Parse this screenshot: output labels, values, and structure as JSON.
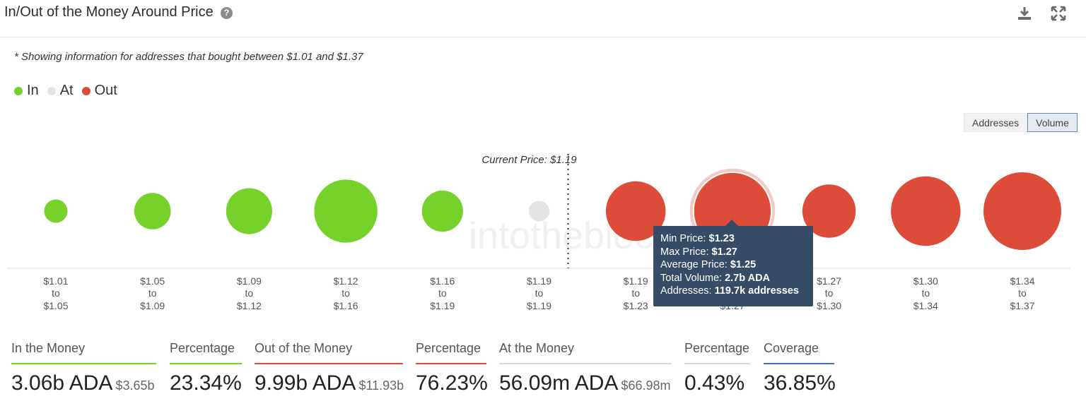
{
  "header": {
    "title": "In/Out of the Money Around Price",
    "help_icon": "question-circle-icon",
    "download_icon": "download-icon",
    "expand_icon": "expand-icon"
  },
  "note": "* Showing information for addresses that bought between $1.01 and $1.37",
  "legend": [
    {
      "label": "In",
      "color": "#77d12b"
    },
    {
      "label": "At",
      "color": "#e3e3e3"
    },
    {
      "label": "Out",
      "color": "#dd4b39"
    }
  ],
  "toggle": {
    "addresses": "Addresses",
    "volume": "Volume",
    "active": "Volume"
  },
  "chart_data": {
    "type": "scatter",
    "annotation": "Current Price: $1.19",
    "current_price_after_index": 5,
    "categories": [
      {
        "from": "$1.01",
        "to_word": "to",
        "to": "$1.05",
        "status": "In",
        "relative_volume": 0.09
      },
      {
        "from": "$1.05",
        "to_word": "to",
        "to": "$1.09",
        "status": "In",
        "relative_volume": 0.22
      },
      {
        "from": "$1.09",
        "to_word": "to",
        "to": "$1.12",
        "status": "In",
        "relative_volume": 0.35
      },
      {
        "from": "$1.12",
        "to_word": "to",
        "to": "$1.16",
        "status": "In",
        "relative_volume": 0.66
      },
      {
        "from": "$1.16",
        "to_word": "to",
        "to": "$1.19",
        "status": "In",
        "relative_volume": 0.28
      },
      {
        "from": "$1.19",
        "to_word": "to",
        "to": "$1.19",
        "status": "At",
        "relative_volume": 0.07
      },
      {
        "from": "$1.19",
        "to_word": "to",
        "to": "$1.23",
        "status": "Out",
        "relative_volume": 0.59
      },
      {
        "from": "$1.23",
        "to_word": "to",
        "to": "$1.27",
        "status": "Out",
        "relative_volume": 0.97
      },
      {
        "from": "$1.27",
        "to_word": "to",
        "to": "$1.30",
        "status": "Out",
        "relative_volume": 0.47
      },
      {
        "from": "$1.30",
        "to_word": "to",
        "to": "$1.34",
        "status": "Out",
        "relative_volume": 0.8
      },
      {
        "from": "$1.34",
        "to_word": "to",
        "to": "$1.37",
        "status": "Out",
        "relative_volume": 1.0
      }
    ],
    "highlighted_index": 7,
    "tooltip": {
      "min_price_label": "Min Price:",
      "min_price": "$1.23",
      "max_price_label": "Max Price:",
      "max_price": "$1.27",
      "avg_price_label": "Average Price:",
      "avg_price": "$1.25",
      "total_volume_label": "Total Volume:",
      "total_volume": "2.7b ADA",
      "addresses_label": "Addresses:",
      "addresses": "119.7k addresses"
    },
    "watermark": "intotheblock"
  },
  "stats": [
    {
      "label": "In the Money",
      "value": "3.06b ADA",
      "sub": "$3.65b",
      "color": "#77d12b"
    },
    {
      "label": "Percentage",
      "value": "23.34%",
      "sub": "",
      "color": "#77d12b"
    },
    {
      "label": "Out of the Money",
      "value": "9.99b ADA",
      "sub": "$11.93b",
      "color": "#dd4b39"
    },
    {
      "label": "Percentage",
      "value": "76.23%",
      "sub": "",
      "color": "#dd4b39"
    },
    {
      "label": "At the Money",
      "value": "56.09m ADA",
      "sub": "$66.98m",
      "color": "#d9d9d9"
    },
    {
      "label": "Percentage",
      "value": "0.43%",
      "sub": "",
      "color": "#d9d9d9"
    },
    {
      "label": "Coverage",
      "value": "36.85%",
      "sub": "",
      "color": "#3b6fb6"
    }
  ]
}
